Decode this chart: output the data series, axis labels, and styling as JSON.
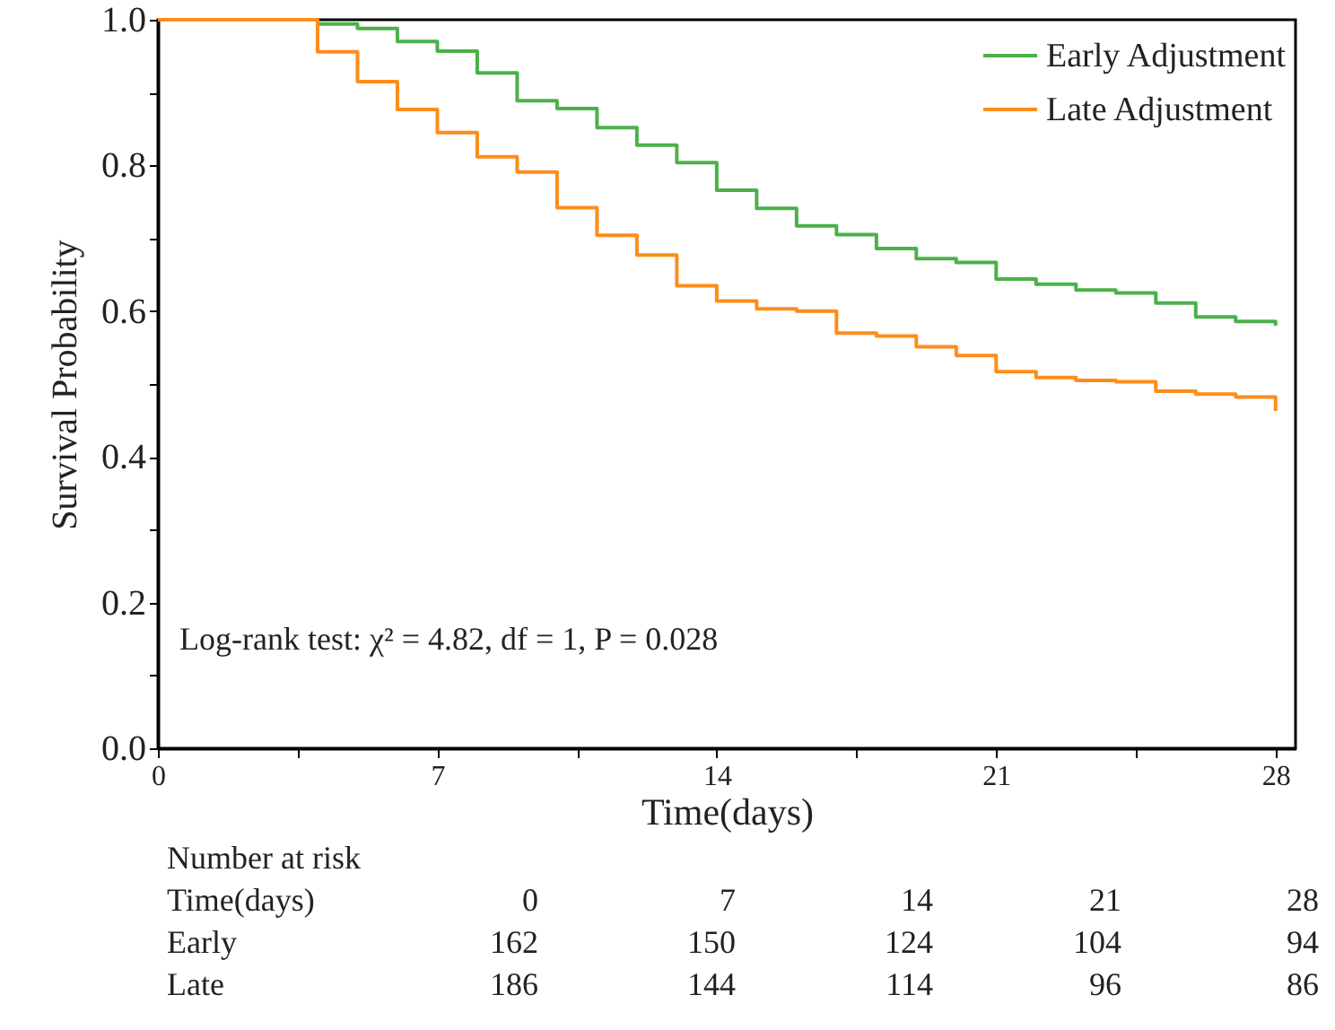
{
  "chart_data": {
    "type": "step",
    "xlabel": "Time(days)",
    "ylabel": "Survival Probability",
    "xlim": [
      0,
      28.5
    ],
    "ylim": [
      0,
      1.0
    ],
    "xticks": [
      0,
      {
        "value": 3.5,
        "label": null
      },
      7,
      {
        "value": 10.5,
        "label": null
      },
      14,
      {
        "value": 17.5,
        "label": null
      },
      21,
      {
        "value": 24.5,
        "label": null
      },
      28
    ],
    "yticks": [
      {
        "value": 0,
        "label": "0.0"
      },
      {
        "value": 0.1,
        "label": null
      },
      0.2,
      {
        "value": 0.3,
        "label": null
      },
      0.4,
      {
        "value": 0.5,
        "label": null
      },
      0.6,
      {
        "value": 0.7,
        "label": null
      },
      0.8,
      {
        "value": 0.9,
        "label": null
      },
      {
        "value": 1,
        "label": "1.0"
      }
    ],
    "grid": false,
    "legend": "top right",
    "marker": "none",
    "line_style": "solid",
    "series": [
      {
        "name": "Early Adjustment",
        "color": "#4cb04a",
        "x": [
          0,
          4,
          5,
          6,
          7,
          8,
          9,
          10,
          11,
          12,
          13,
          14,
          15,
          16,
          17,
          18,
          19,
          20,
          21,
          22,
          23,
          24,
          25,
          26,
          27,
          28
        ],
        "values": [
          1.0,
          0.994,
          0.988,
          0.97,
          0.957,
          0.927,
          0.889,
          0.878,
          0.852,
          0.828,
          0.804,
          0.766,
          0.741,
          0.717,
          0.705,
          0.686,
          0.672,
          0.667,
          0.644,
          0.637,
          0.629,
          0.625,
          0.611,
          0.592,
          0.586,
          0.58
        ]
      },
      {
        "name": "Late Adjustment",
        "color": "#ff8c1a",
        "x": [
          0,
          4,
          5,
          6,
          7,
          8,
          9,
          10,
          11,
          12,
          13,
          14,
          15,
          16,
          17,
          18,
          19,
          20,
          21,
          22,
          23,
          24,
          25,
          26,
          27,
          28,
          28
        ],
        "values": [
          1.0,
          0.956,
          0.915,
          0.877,
          0.845,
          0.812,
          0.791,
          0.742,
          0.704,
          0.677,
          0.635,
          0.614,
          0.603,
          0.6,
          0.57,
          0.566,
          0.551,
          0.539,
          0.517,
          0.509,
          0.505,
          0.503,
          0.49,
          0.486,
          0.482,
          0.479,
          0.463
        ]
      }
    ],
    "annotations": [
      "Log-rank test: χ² = 4.82, df = 1, P = 0.028",
      "Number at risk",
      "Time(days)\t0\t7\t14\t21\t28",
      "Early\t162\t150\t124\t104\t94",
      "Late\t186\t144\t114\t96\t86"
    ]
  }
}
